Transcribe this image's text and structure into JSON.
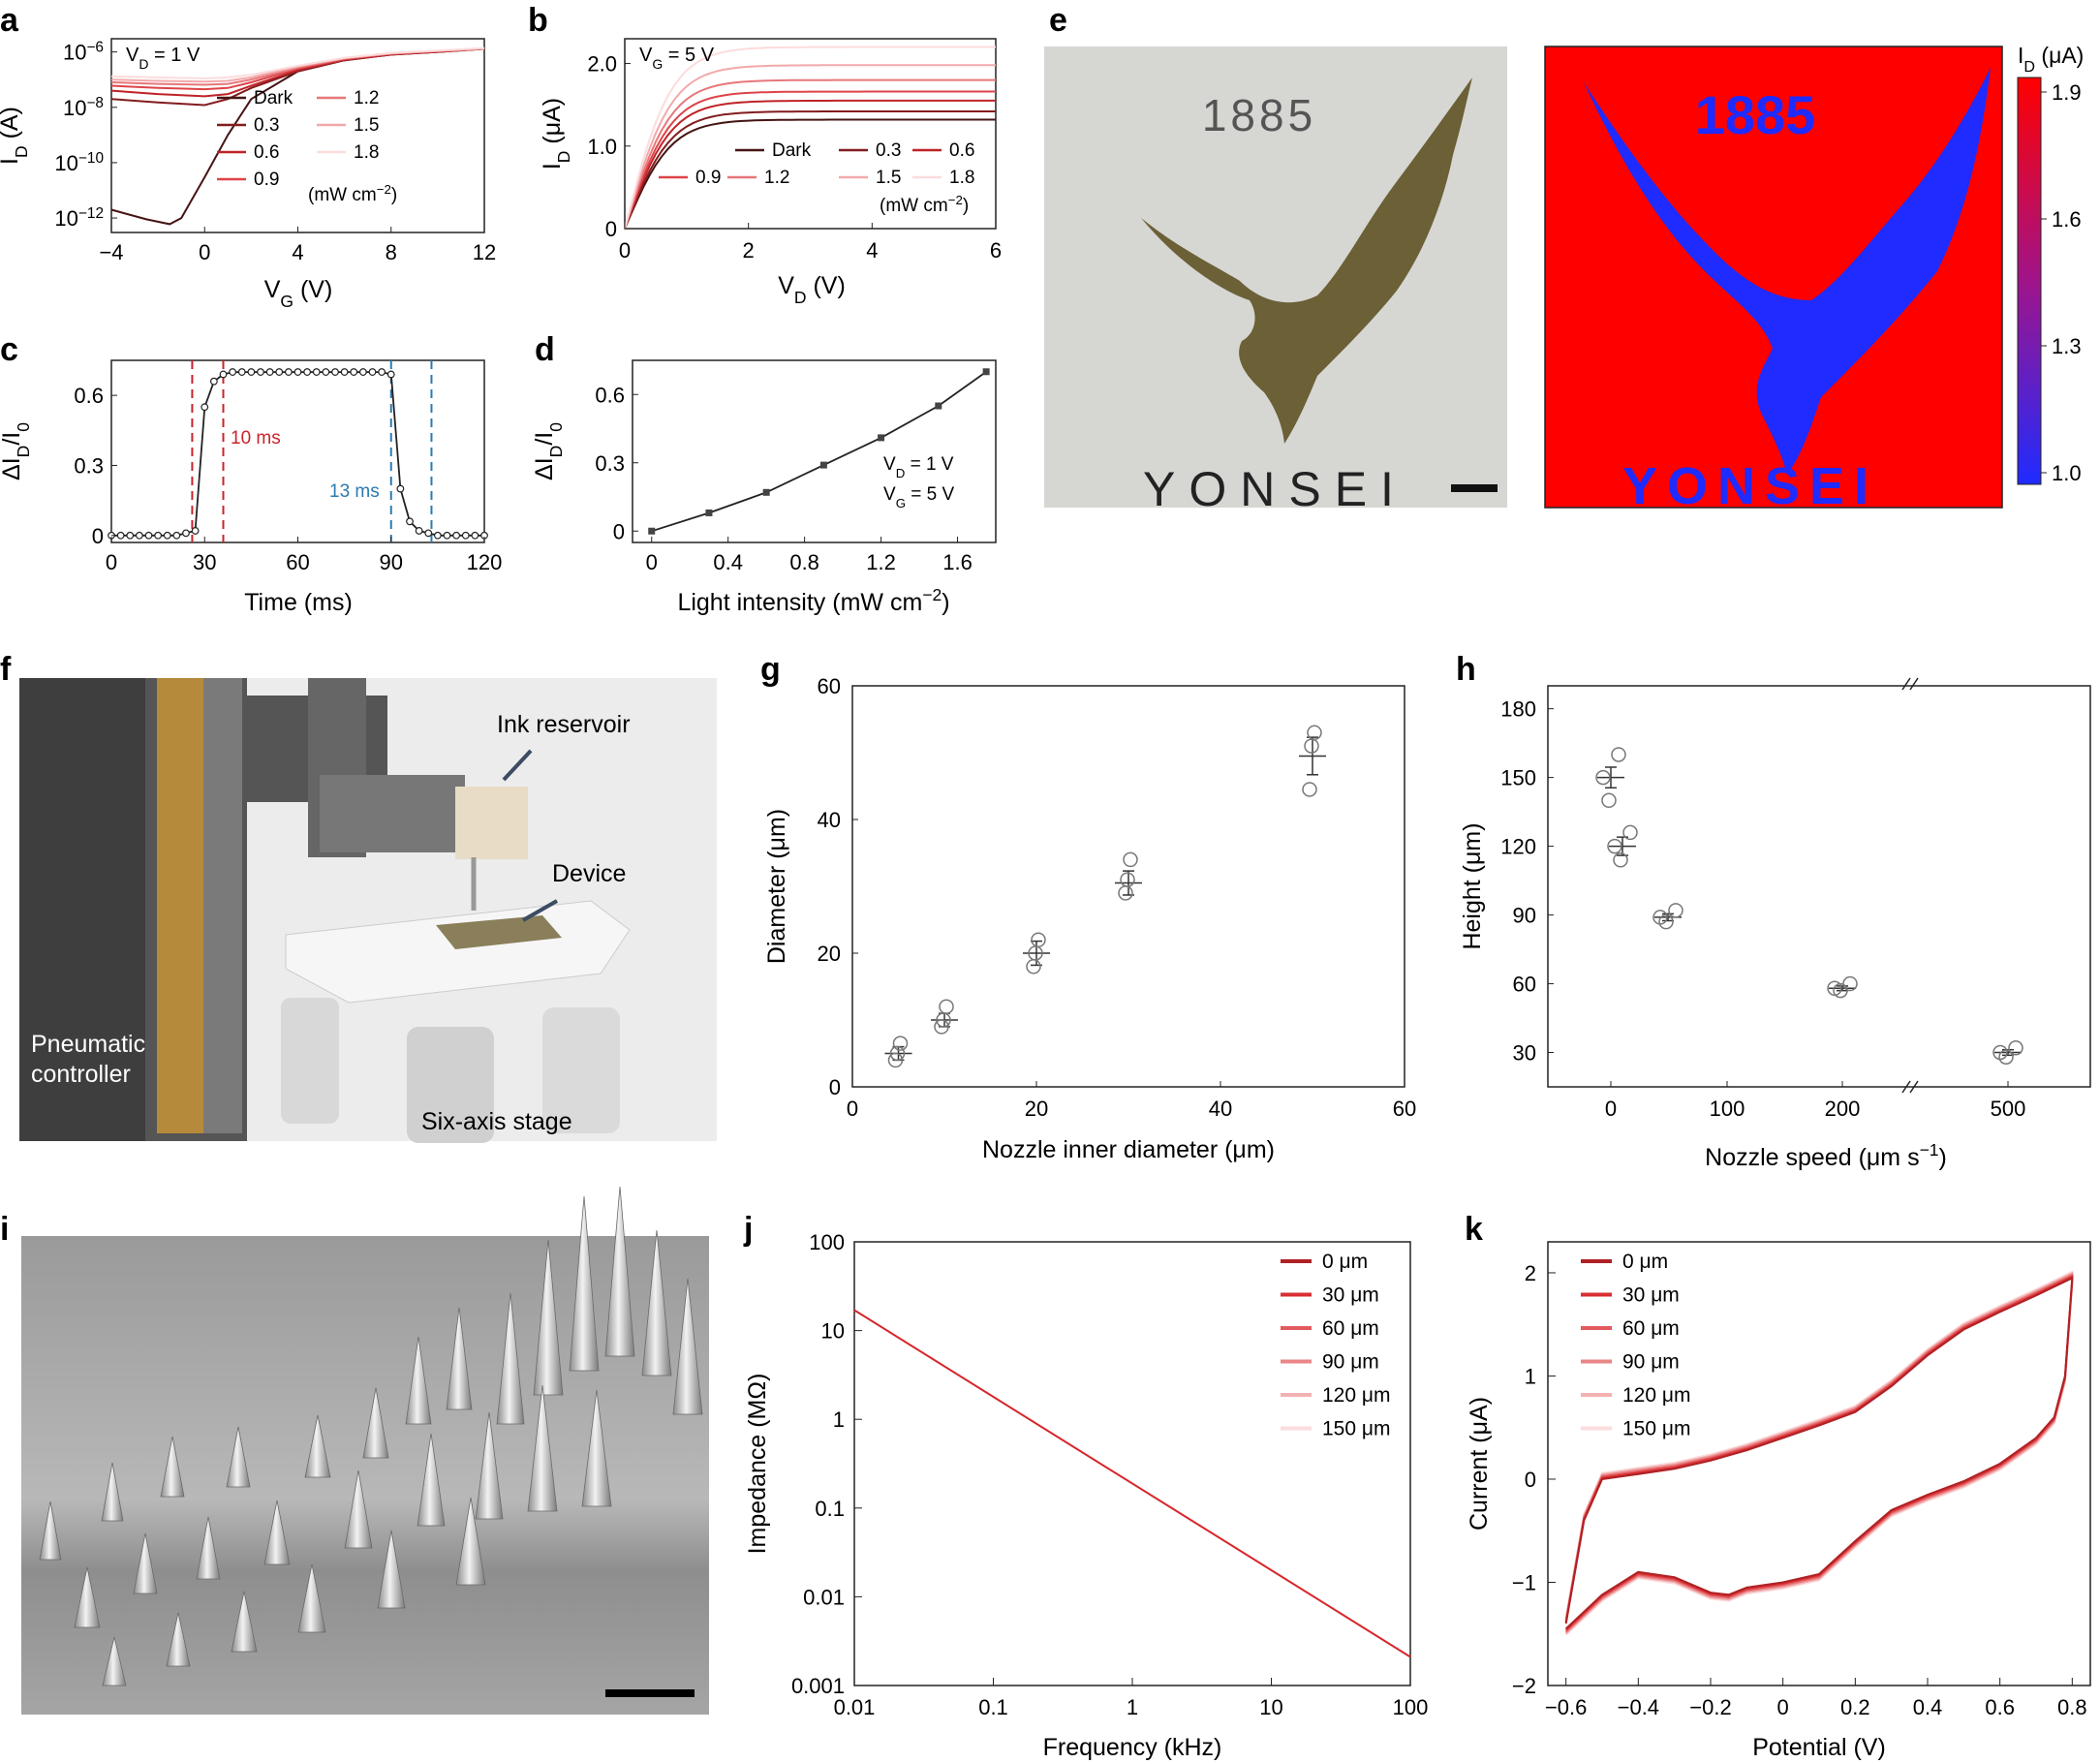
{
  "colors": {
    "red_dark": "#5a1a1a",
    "red": "#d7262b",
    "red_light": "#f2b3b3",
    "blue_dashed": "#2b7bb0",
    "heat_red": "#ff0000",
    "heat_blue": "#1f2bff",
    "gold": "#6b6036"
  },
  "panels": {
    "a": {
      "letter": "a",
      "annotation": "V_D = 1 V",
      "ylabel": "I_D (A)",
      "xlabel": "V_G (V)",
      "xticks": [
        "−4",
        "0",
        "4",
        "8",
        "12"
      ],
      "yticks": [
        "10^-6",
        "10^-8",
        "10^-10",
        "10^-12"
      ],
      "legend": [
        "Dark",
        "0.3",
        "0.6",
        "0.9",
        "1.2",
        "1.5",
        "1.8"
      ],
      "legend_unit": "(mW cm^-2)"
    },
    "b": {
      "letter": "b",
      "annotation": "V_G = 5 V",
      "ylabel": "I_D (μA)",
      "xlabel": "V_D (V)",
      "xticks": [
        "0",
        "2",
        "4",
        "6"
      ],
      "yticks": [
        "0",
        "1.0",
        "2.0"
      ],
      "legend": [
        "Dark",
        "0.3",
        "0.6",
        "0.9",
        "1.2",
        "1.5",
        "1.8"
      ],
      "legend_unit": "(mW cm^-2)"
    },
    "c": {
      "letter": "c",
      "ylabel": "ΔI_D/I_0",
      "xlabel": "Time (ms)",
      "xticks": [
        "0",
        "30",
        "60",
        "90",
        "120"
      ],
      "yticks": [
        "0",
        "0.3",
        "0.6"
      ],
      "rise_label": "10 ms",
      "fall_label": "13 ms"
    },
    "d": {
      "letter": "d",
      "ylabel": "ΔI_D/I_0",
      "xlabel": "Light intensity (mW cm^-2)",
      "xticks": [
        "0",
        "0.4",
        "0.8",
        "1.2",
        "1.6"
      ],
      "yticks": [
        "0",
        "0.3",
        "0.6"
      ],
      "annotation1": "V_D = 1 V",
      "annotation2": "V_G = 5 V"
    },
    "e": {
      "letter": "e",
      "photo_year": "1885",
      "photo_word": "YONSEI",
      "map_year": "1885",
      "map_word": "YONSEI",
      "colorbar_label": "I_D (μA)",
      "colorbar_ticks": [
        "1.9",
        "1.6",
        "1.3",
        "1.0"
      ]
    },
    "f": {
      "letter": "f",
      "label_ink": "Ink reservoir",
      "label_device": "Device",
      "label_controller_1": "Pneumatic",
      "label_controller_2": "controller",
      "label_stage": "Six-axis stage"
    },
    "g": {
      "letter": "g",
      "ylabel": "Diameter (μm)",
      "xlabel": "Nozzle inner diameter (μm)",
      "xticks": [
        "0",
        "20",
        "40",
        "60"
      ],
      "yticks": [
        "0",
        "20",
        "40",
        "60"
      ]
    },
    "h": {
      "letter": "h",
      "ylabel": "Height (μm)",
      "xlabel": "Nozzle speed (μm s^-1)",
      "xticks": [
        "0",
        "100",
        "200",
        "500"
      ],
      "yticks": [
        "30",
        "60",
        "90",
        "120",
        "150",
        "180"
      ]
    },
    "i": {
      "letter": "i"
    },
    "j": {
      "letter": "j",
      "ylabel": "Impedance (MΩ)",
      "xlabel": "Frequency (kHz)",
      "xticks": [
        "0.01",
        "0.1",
        "1",
        "10",
        "100"
      ],
      "yticks": [
        "100",
        "10",
        "1",
        "0.1",
        "0.01",
        "0.001"
      ],
      "legend": [
        "0 μm",
        "30 μm",
        "60 μm",
        "90 μm",
        "120 μm",
        "150 μm"
      ]
    },
    "k": {
      "letter": "k",
      "ylabel": "Current (μA)",
      "xlabel": "Potential (V)",
      "xticks": [
        "−0.6",
        "−0.4",
        "−0.2",
        "0",
        "0.2",
        "0.4",
        "0.6",
        "0.8"
      ],
      "yticks": [
        "2",
        "1",
        "0",
        "−1",
        "−2"
      ],
      "legend": [
        "0 μm",
        "30 μm",
        "60 μm",
        "90 μm",
        "120 μm",
        "150 μm"
      ]
    }
  },
  "chart_data": [
    {
      "panel": "a",
      "type": "line",
      "yscale": "log",
      "xlim": [
        -4,
        12
      ],
      "ylim": [
        3e-13,
        3e-06
      ],
      "series": [
        {
          "name": "Dark",
          "x": [
            -4,
            -2.5,
            -1.5,
            -1,
            0,
            1,
            2,
            4,
            6,
            8,
            10,
            12
          ],
          "y": [
            2e-12,
            9e-13,
            6e-13,
            1e-12,
            3e-11,
            1e-09,
            2e-08,
            2e-07,
            5e-07,
            8e-07,
            1e-06,
            1.3e-06
          ]
        },
        {
          "name": "0.3",
          "x": [
            -4,
            -2,
            0,
            1,
            2,
            4,
            6,
            8,
            10,
            12
          ],
          "y": [
            2e-08,
            1.5e-08,
            1.2e-08,
            2e-08,
            5e-08,
            2e-07,
            5e-07,
            8e-07,
            1e-06,
            1.3e-06
          ]
        },
        {
          "name": "0.6",
          "x": [
            -4,
            -2,
            0,
            1,
            2,
            4,
            6,
            8,
            10,
            12
          ],
          "y": [
            4e-08,
            3e-08,
            2.5e-08,
            3e-08,
            6e-08,
            2.2e-07,
            5.2e-07,
            8.2e-07,
            1.02e-06,
            1.3e-06
          ]
        },
        {
          "name": "0.9",
          "x": [
            -4,
            -2,
            0,
            1,
            2,
            4,
            6,
            8,
            10,
            12
          ],
          "y": [
            6e-08,
            5e-08,
            4.5e-08,
            5e-08,
            8e-08,
            2.5e-07,
            5.5e-07,
            8.5e-07,
            1.05e-06,
            1.3e-06
          ]
        },
        {
          "name": "1.2",
          "x": [
            -4,
            -2,
            0,
            1,
            2,
            4,
            6,
            8,
            10,
            12
          ],
          "y": [
            8e-08,
            7e-08,
            6.5e-08,
            7e-08,
            1e-07,
            2.7e-07,
            5.8e-07,
            8.7e-07,
            1.07e-06,
            1.32e-06
          ]
        },
        {
          "name": "1.5",
          "x": [
            -4,
            -2,
            0,
            1,
            2,
            4,
            6,
            8,
            10,
            12
          ],
          "y": [
            1e-07,
            9e-08,
            8.5e-08,
            9e-08,
            1.2e-07,
            3e-07,
            6e-07,
            9e-07,
            1.1e-06,
            1.35e-06
          ]
        },
        {
          "name": "1.8",
          "x": [
            -4,
            -2,
            0,
            1,
            2,
            4,
            6,
            8,
            10,
            12
          ],
          "y": [
            1.3e-07,
            1.2e-07,
            1.1e-07,
            1.2e-07,
            1.5e-07,
            3.2e-07,
            6.2e-07,
            9.2e-07,
            1.12e-06,
            1.38e-06
          ]
        }
      ]
    },
    {
      "panel": "b",
      "type": "line",
      "xlim": [
        0,
        6
      ],
      "ylim": [
        0,
        2.3
      ],
      "series": [
        {
          "name": "Dark",
          "sat": 1.32
        },
        {
          "name": "0.3",
          "sat": 1.42
        },
        {
          "name": "0.6",
          "sat": 1.55
        },
        {
          "name": "0.9",
          "sat": 1.66
        },
        {
          "name": "1.2",
          "sat": 1.8
        },
        {
          "name": "1.5",
          "sat": 1.98
        },
        {
          "name": "1.8",
          "sat": 2.2
        }
      ]
    },
    {
      "panel": "c",
      "type": "line",
      "xlim": [
        0,
        120
      ],
      "ylim": [
        -0.03,
        0.75
      ],
      "x": [
        0,
        3,
        6,
        9,
        12,
        15,
        18,
        21,
        24,
        27,
        30,
        33,
        36,
        39,
        42,
        45,
        48,
        51,
        54,
        57,
        60,
        63,
        66,
        69,
        72,
        75,
        78,
        81,
        84,
        87,
        90,
        93,
        96,
        99,
        102,
        105,
        108,
        111,
        114,
        117,
        120
      ],
      "y": [
        0,
        0,
        0,
        0,
        0,
        0,
        0,
        0,
        0.01,
        0.02,
        0.55,
        0.66,
        0.69,
        0.7,
        0.7,
        0.7,
        0.7,
        0.7,
        0.7,
        0.7,
        0.7,
        0.7,
        0.7,
        0.7,
        0.7,
        0.7,
        0.7,
        0.7,
        0.7,
        0.7,
        0.69,
        0.2,
        0.06,
        0.02,
        0.01,
        0,
        0,
        0,
        0,
        0,
        0
      ],
      "rise_lines": [
        26,
        36
      ],
      "fall_lines": [
        90,
        103
      ]
    },
    {
      "panel": "d",
      "type": "line",
      "xlim": [
        -0.1,
        1.8
      ],
      "ylim": [
        -0.05,
        0.75
      ],
      "x": [
        0,
        0.3,
        0.6,
        0.9,
        1.2,
        1.5,
        1.75
      ],
      "y": [
        0,
        0.08,
        0.17,
        0.29,
        0.41,
        0.55,
        0.7
      ]
    },
    {
      "panel": "g",
      "type": "scatter",
      "xlim": [
        0,
        60
      ],
      "ylim": [
        0,
        60
      ],
      "groups": [
        {
          "x": 5,
          "mean": 5,
          "err": 1,
          "points": [
            4,
            5,
            6.5
          ]
        },
        {
          "x": 10,
          "mean": 10,
          "err": 1,
          "points": [
            9,
            10,
            12
          ]
        },
        {
          "x": 20,
          "mean": 20,
          "err": 1.8,
          "points": [
            18,
            20,
            22
          ]
        },
        {
          "x": 30,
          "mean": 30.5,
          "err": 1.8,
          "points": [
            29,
            31,
            34
          ]
        },
        {
          "x": 50,
          "mean": 49.5,
          "err": 2.8,
          "points": [
            44.5,
            51,
            53
          ]
        }
      ]
    },
    {
      "panel": "h",
      "type": "scatter",
      "ylim": [
        15,
        190
      ],
      "groups": [
        {
          "x": 0,
          "mean": 150,
          "err": 4.5,
          "points": [
            140,
            150,
            160
          ]
        },
        {
          "x": 10,
          "mean": 120,
          "err": 4,
          "points": [
            114,
            120,
            126
          ]
        },
        {
          "x": 50,
          "mean": 89,
          "err": 1.5,
          "points": [
            87,
            89,
            92
          ]
        },
        {
          "x": 200,
          "mean": 58,
          "err": 1,
          "points": [
            57,
            58,
            60
          ]
        },
        {
          "x": 500,
          "mean": 30,
          "err": 1.2,
          "points": [
            28,
            30,
            32
          ]
        }
      ]
    },
    {
      "panel": "j",
      "type": "line",
      "xscale": "log",
      "yscale": "log",
      "xlim": [
        0.01,
        100
      ],
      "ylim": [
        0.001,
        100
      ],
      "x": [
        0.01,
        100
      ],
      "y": [
        17,
        0.0021
      ]
    },
    {
      "panel": "k",
      "type": "line",
      "xlim": [
        -0.65,
        0.85
      ],
      "ylim": [
        -2,
        2.3
      ],
      "upper_x": [
        -0.6,
        -0.55,
        -0.5,
        -0.4,
        -0.3,
        -0.2,
        -0.1,
        0,
        0.1,
        0.2,
        0.3,
        0.4,
        0.5,
        0.6,
        0.7,
        0.8
      ],
      "upper_y": [
        -1.4,
        -0.4,
        0,
        0.05,
        0.1,
        0.18,
        0.28,
        0.4,
        0.52,
        0.65,
        0.9,
        1.2,
        1.45,
        1.62,
        1.78,
        1.95
      ],
      "lower_x": [
        0.8,
        0.78,
        0.75,
        0.7,
        0.6,
        0.5,
        0.4,
        0.3,
        0.2,
        0.1,
        0,
        -0.1,
        -0.15,
        -0.2,
        -0.3,
        -0.4,
        -0.5,
        -0.6
      ],
      "lower_y": [
        1.95,
        1.0,
        0.6,
        0.4,
        0.15,
        -0.02,
        -0.15,
        -0.3,
        -0.6,
        -0.92,
        -1.0,
        -1.05,
        -1.12,
        -1.1,
        -0.95,
        -0.9,
        -1.12,
        -1.45
      ]
    }
  ]
}
